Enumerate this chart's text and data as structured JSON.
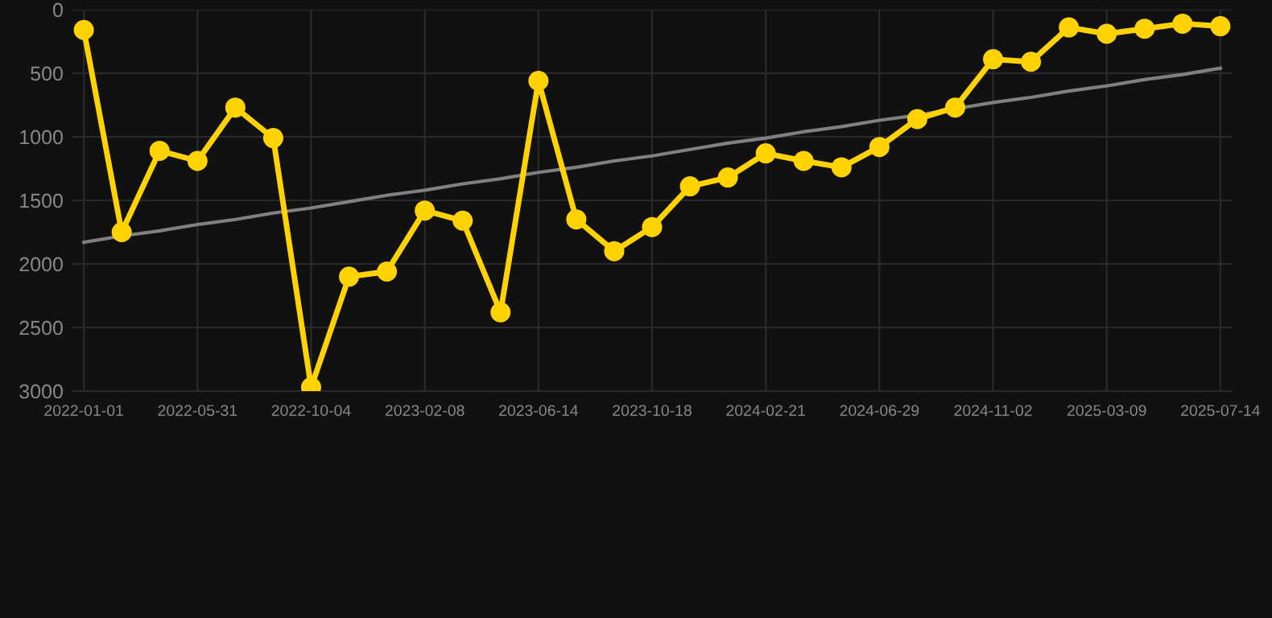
{
  "chart_data": {
    "type": "line",
    "categories": [
      "2022-01-01",
      null,
      null,
      "2022-05-31",
      null,
      null,
      "2022-10-04",
      null,
      null,
      "2023-02-08",
      null,
      null,
      "2023-06-14",
      null,
      null,
      "2023-10-18",
      null,
      null,
      "2024-02-21",
      null,
      null,
      "2024-06-29",
      null,
      null,
      "2024-11-02",
      null,
      null,
      "2025-03-09",
      null,
      null,
      "2025-07-14"
    ],
    "series": [
      {
        "color": "#ffd200",
        "marker": "circle",
        "values": [
          160,
          1750,
          1110,
          1190,
          770,
          1010,
          2970,
          2100,
          2060,
          1580,
          1660,
          2380,
          560,
          1650,
          1900,
          1710,
          1390,
          1320,
          1130,
          1190,
          1240,
          1080,
          860,
          770,
          390,
          410,
          140,
          190,
          150,
          110,
          130
        ]
      },
      {
        "type": "line",
        "color": "#808080",
        "marker": "none",
        "values": [
          1830,
          1780,
          1740,
          1690,
          1650,
          1600,
          1560,
          1510,
          1460,
          1420,
          1370,
          1330,
          1280,
          1240,
          1190,
          1150,
          1100,
          1050,
          1010,
          960,
          920,
          870,
          830,
          780,
          730,
          690,
          640,
          600,
          550,
          510,
          460
        ]
      }
    ],
    "ylim": [
      3000,
      0
    ],
    "yticks": [
      0,
      500,
      1000,
      1500,
      2000,
      2500,
      3000
    ],
    "grid": true
  }
}
